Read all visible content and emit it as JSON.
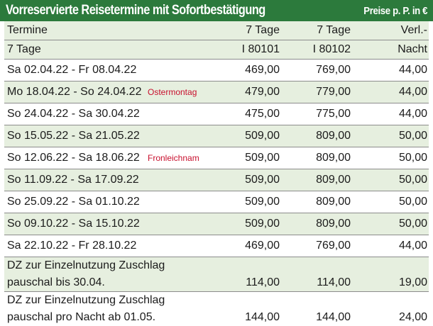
{
  "header": {
    "title": "Vorreservierte Reisetermine mit Sofortbestätigung",
    "price_note": "Preise p. P. in €"
  },
  "columns": {
    "row1": [
      "Termine",
      "",
      "7 Tage",
      "7 Tage",
      "Verl.-"
    ],
    "row2": [
      "7 Tage",
      "",
      "I 80101",
      "I 80102",
      "Nacht"
    ]
  },
  "rows": [
    {
      "termin": "Sa  02.04.22 - Fr  08.04.22",
      "note": "",
      "p1": "469,00",
      "p2": "769,00",
      "night": "44,00"
    },
    {
      "termin": "Mo 18.04.22 - So 24.04.22",
      "note": "Ostermontag",
      "p1": "479,00",
      "p2": "779,00",
      "night": "44,00"
    },
    {
      "termin": "So  24.04.22 - Sa 30.04.22",
      "note": "",
      "p1": "475,00",
      "p2": "775,00",
      "night": "44,00"
    },
    {
      "termin": "So  15.05.22 - Sa 21.05.22",
      "note": "",
      "p1": "509,00",
      "p2": "809,00",
      "night": "50,00"
    },
    {
      "termin": "So  12.06.22 - Sa 18.06.22",
      "note": "Fronleichnam",
      "p1": "509,00",
      "p2": "809,00",
      "night": "50,00"
    },
    {
      "termin": "So  11.09.22 - Sa 17.09.22",
      "note": "",
      "p1": "509,00",
      "p2": "809,00",
      "night": "50,00"
    },
    {
      "termin": "So  25.09.22 - Sa 01.10.22",
      "note": "",
      "p1": "509,00",
      "p2": "809,00",
      "night": "50,00"
    },
    {
      "termin": "So  09.10.22 - Sa 15.10.22",
      "note": "",
      "p1": "509,00",
      "p2": "809,00",
      "night": "50,00"
    },
    {
      "termin": "Sa  22.10.22 - Fr  28.10.22",
      "note": "",
      "p1": "469,00",
      "p2": "769,00",
      "night": "44,00"
    }
  ],
  "surcharges": [
    {
      "line1": "DZ zur Einzelnutzung Zuschlag",
      "line2": "pauschal bis 30.04.",
      "p1": "114,00",
      "p2": "114,00",
      "night": "19,00"
    },
    {
      "line1": "DZ zur Einzelnutzung Zuschlag",
      "line2": "pauschal pro Nacht ab 01.05.",
      "p1": "144,00",
      "p2": "144,00",
      "night": "24,00"
    }
  ],
  "colors": {
    "header_bg": "#2c7a3c",
    "band": "#e6efdf",
    "note": "#c8102e"
  }
}
